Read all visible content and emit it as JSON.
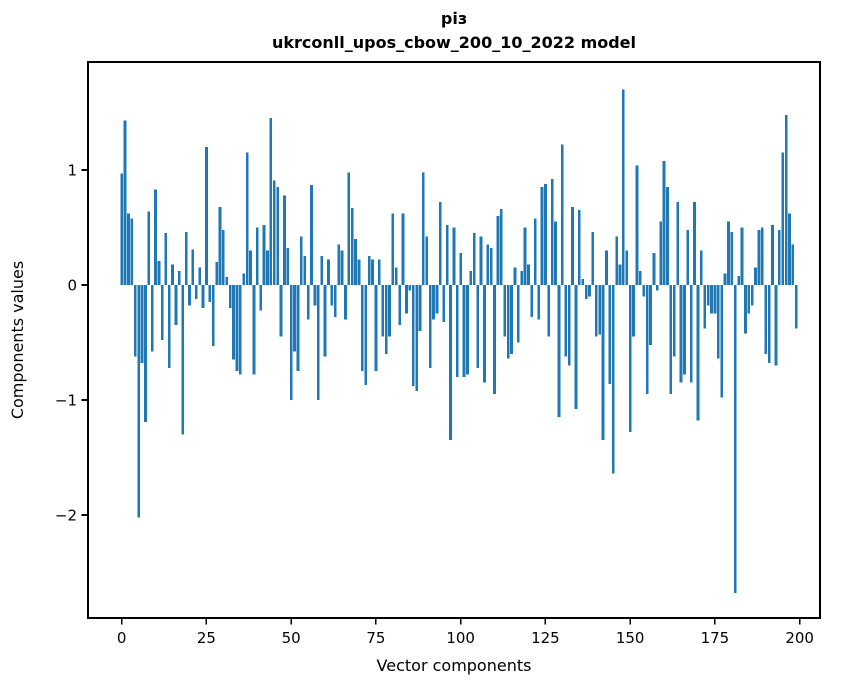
{
  "chart_data": {
    "type": "bar",
    "title_lines": [
      "різ",
      "ukrconll_upos_cbow_200_10_2022 model"
    ],
    "xlabel": "Vector components",
    "ylabel": "Components values",
    "bar_color": "#1f77b4",
    "axis_color": "#000000",
    "background_color": "#ffffff",
    "grid": false,
    "legend": "none",
    "bar_width": 0.8,
    "xlim": [
      -9.94,
      206.0
    ],
    "ylim": [
      -2.896,
      1.939
    ],
    "x_ticks": [
      0,
      25,
      50,
      75,
      100,
      125,
      150,
      175,
      200
    ],
    "x_tick_labels": [
      "0",
      "25",
      "50",
      "75",
      "100",
      "125",
      "150",
      "175",
      "200"
    ],
    "y_ticks": [
      1,
      0,
      -1,
      -2
    ],
    "y_tick_labels": [
      "1",
      "0",
      "−1",
      "−2"
    ],
    "x": "component index 0..199",
    "values": [
      0.97,
      1.43,
      0.62,
      0.58,
      -0.62,
      -2.02,
      -0.68,
      -1.19,
      0.64,
      -0.58,
      0.83,
      0.21,
      -0.48,
      0.45,
      -0.72,
      0.18,
      -0.35,
      0.12,
      -1.3,
      0.46,
      -0.18,
      0.31,
      -0.12,
      0.15,
      -0.2,
      1.2,
      -0.15,
      -0.53,
      0.2,
      0.68,
      0.48,
      0.07,
      -0.2,
      -0.65,
      -0.75,
      -0.78,
      0.1,
      1.15,
      0.3,
      -0.78,
      0.5,
      -0.22,
      0.52,
      0.3,
      1.45,
      0.91,
      0.85,
      -0.45,
      0.78,
      0.32,
      -1.0,
      -0.58,
      -0.75,
      0.42,
      0.25,
      -0.3,
      0.87,
      -0.18,
      -1.0,
      0.25,
      -0.62,
      0.22,
      -0.18,
      -0.28,
      0.35,
      0.3,
      -0.3,
      0.98,
      0.67,
      0.4,
      0.22,
      -0.75,
      -0.87,
      0.25,
      0.22,
      -0.75,
      0.22,
      -0.45,
      -0.6,
      -0.45,
      0.62,
      0.15,
      -0.35,
      0.62,
      -0.25,
      -0.05,
      -0.88,
      -0.92,
      -0.4,
      0.98,
      0.42,
      -0.72,
      -0.3,
      -0.25,
      0.72,
      -0.32,
      0.52,
      -1.35,
      0.5,
      -0.8,
      0.28,
      -0.8,
      -0.78,
      0.12,
      0.45,
      -0.72,
      0.42,
      -0.85,
      0.35,
      0.32,
      -0.95,
      0.6,
      0.66,
      -0.45,
      -0.64,
      -0.6,
      0.15,
      -0.5,
      0.12,
      0.5,
      0.18,
      -0.28,
      0.58,
      -0.3,
      0.85,
      0.88,
      -0.45,
      0.92,
      0.55,
      -1.15,
      1.22,
      -0.62,
      -0.7,
      0.68,
      -1.08,
      0.65,
      0.05,
      -0.12,
      -0.1,
      0.46,
      -0.45,
      -0.43,
      -1.35,
      0.3,
      -0.86,
      -1.64,
      0.42,
      0.18,
      1.7,
      0.3,
      -1.28,
      -0.45,
      1.04,
      0.12,
      -0.1,
      -0.95,
      -0.52,
      0.28,
      -0.05,
      0.55,
      1.08,
      0.85,
      -0.95,
      -0.62,
      0.72,
      -0.85,
      -0.78,
      0.48,
      -0.85,
      0.72,
      -1.18,
      0.3,
      -0.38,
      -0.18,
      -0.25,
      -0.25,
      -0.64,
      -0.98,
      0.1,
      0.55,
      0.46,
      -2.68,
      0.08,
      0.5,
      -0.42,
      -0.25,
      -0.18,
      0.15,
      0.48,
      0.5,
      -0.6,
      -0.68,
      0.52,
      -0.7,
      0.48,
      1.15,
      1.48,
      0.62,
      0.35,
      -0.38
    ]
  }
}
